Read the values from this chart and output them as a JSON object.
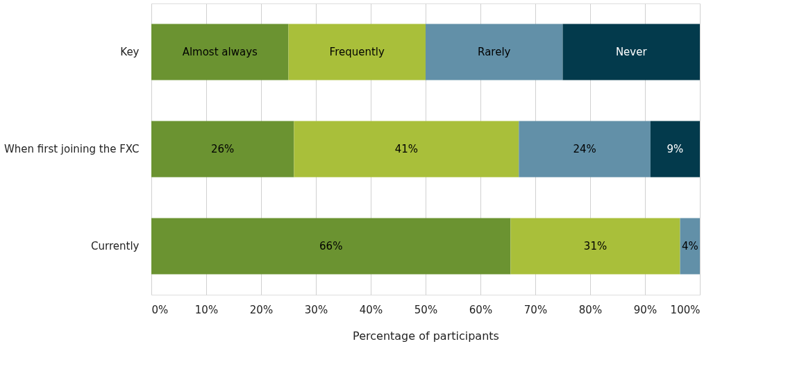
{
  "chart_data": {
    "type": "bar",
    "orientation": "horizontal",
    "stacked": true,
    "categories": [
      "Key",
      "When first joining the FXC",
      "Currently"
    ],
    "series": [
      {
        "name": "Almost always",
        "color": "#6b9331",
        "values": [
          25,
          26,
          65.5
        ],
        "value_labels": [
          null,
          "26%",
          "66%"
        ]
      },
      {
        "name": "Frequently",
        "color": "#a9bf3a",
        "values": [
          25,
          41,
          30.9
        ],
        "value_labels": [
          null,
          "41%",
          "31%"
        ]
      },
      {
        "name": "Rarely",
        "color": "#6290a8",
        "values": [
          25,
          24,
          3.6
        ],
        "value_labels": [
          null,
          "24%",
          "4%"
        ]
      },
      {
        "name": "Never",
        "color": "#033a4c",
        "values": [
          25,
          9,
          null
        ],
        "value_labels": [
          null,
          "9%",
          null
        ]
      }
    ],
    "xlabel": "Percentage of participants",
    "xlim": [
      0,
      100
    ],
    "xticks": [
      {
        "value": 0,
        "label": "0%"
      },
      {
        "value": 10,
        "label": "10%"
      },
      {
        "value": 20,
        "label": "20%"
      },
      {
        "value": 30,
        "label": "30%"
      },
      {
        "value": 40,
        "label": "40%"
      },
      {
        "value": 50,
        "label": "50%"
      },
      {
        "value": 60,
        "label": "60%"
      },
      {
        "value": 70,
        "label": "70%"
      },
      {
        "value": 80,
        "label": "80%"
      },
      {
        "value": 90,
        "label": "90%"
      },
      {
        "value": 100,
        "label": "100%"
      }
    ],
    "grid": "x"
  }
}
